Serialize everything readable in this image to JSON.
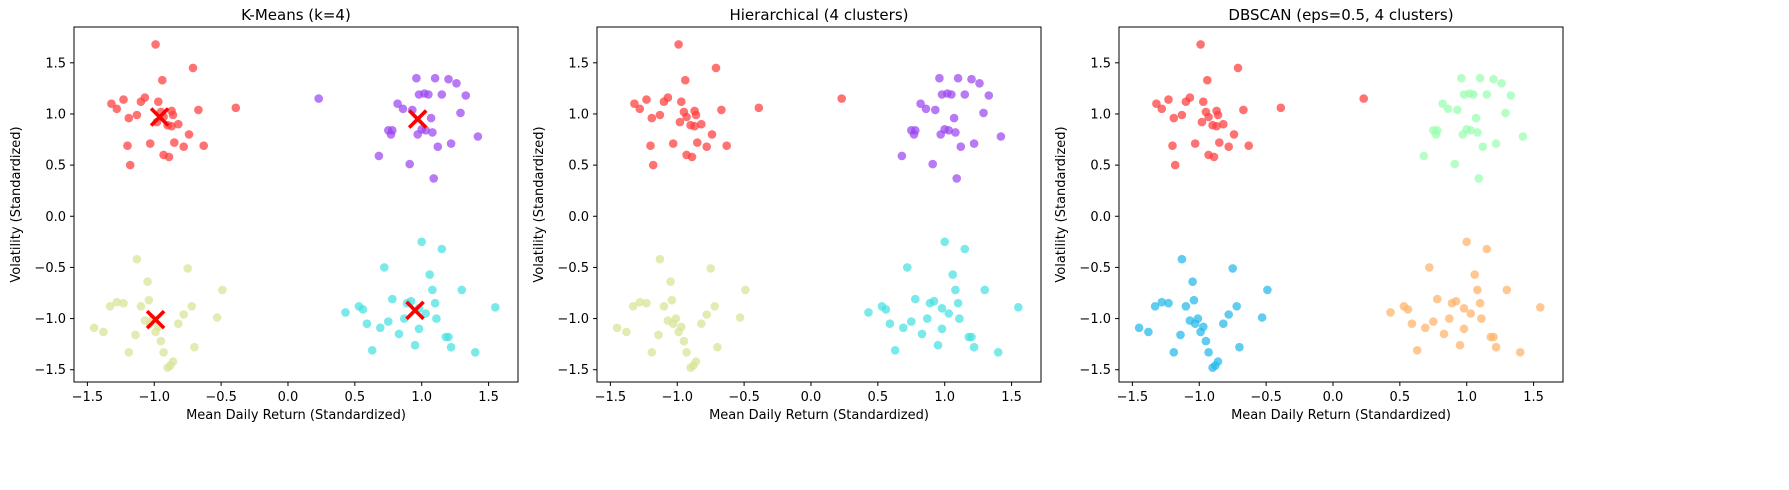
{
  "chart_data": [
    {
      "type": "scatter",
      "title": "K-Means (k=4)",
      "xlabel": "Mean Daily Return (Standardized)",
      "ylabel": "Volatility (Standardized)",
      "xlim": [
        -1.6,
        1.72
      ],
      "ylim": [
        -1.62,
        1.85
      ],
      "xticks": [
        -1.5,
        -1.0,
        -0.5,
        0.0,
        0.5,
        1.0,
        1.5
      ],
      "yticks": [
        -1.5,
        -1.0,
        -0.5,
        0.0,
        0.5,
        1.0,
        1.5
      ],
      "grid": false,
      "colors": [
        "#ff3b3b",
        "#9b45f0",
        "#d8e394",
        "#45e0e0"
      ],
      "centers": [
        [
          -0.96,
          0.97
        ],
        [
          0.97,
          0.95
        ],
        [
          -0.99,
          -1.01
        ],
        [
          0.95,
          -0.92
        ]
      ],
      "center_color": "#ff0000",
      "cluster_assignment": [
        0,
        1,
        2,
        3,
        1
      ]
    },
    {
      "type": "scatter",
      "title": "Hierarchical (4 clusters)",
      "xlabel": "Mean Daily Return (Standardized)",
      "ylabel": "Volatility (Standardized)",
      "xlim": [
        -1.6,
        1.72
      ],
      "ylim": [
        -1.62,
        1.85
      ],
      "xticks": [
        -1.5,
        -1.0,
        -0.5,
        0.0,
        0.5,
        1.0,
        1.5
      ],
      "yticks": [
        -1.5,
        -1.0,
        -0.5,
        0.0,
        0.5,
        1.0,
        1.5
      ],
      "grid": false,
      "colors": [
        "#ff3b3b",
        "#9b45f0",
        "#d8e394",
        "#45e0e0"
      ],
      "cluster_assignment": [
        0,
        1,
        2,
        3,
        0
      ]
    },
    {
      "type": "scatter",
      "title": "DBSCAN (eps=0.5, 4 clusters)",
      "xlabel": "Mean Daily Return (Standardized)",
      "ylabel": "Volatility (Standardized)",
      "xlim": [
        -1.6,
        1.72
      ],
      "ylim": [
        -1.62,
        1.85
      ],
      "xticks": [
        -1.5,
        -1.0,
        -0.5,
        0.0,
        0.5,
        1.0,
        1.5
      ],
      "yticks": [
        -1.5,
        -1.0,
        -0.5,
        0.0,
        0.5,
        1.0,
        1.5
      ],
      "grid": false,
      "colors": [
        "#ff3b3b",
        "#98ffb0",
        "#22b8ea",
        "#ffb36a"
      ],
      "cluster_assignment": [
        0,
        1,
        2,
        3,
        0
      ]
    }
  ],
  "points": {
    "group_top_left": [
      [
        -1.32,
        1.1
      ],
      [
        -1.28,
        1.05
      ],
      [
        -1.23,
        1.14
      ],
      [
        -1.19,
        0.96
      ],
      [
        -1.2,
        0.69
      ],
      [
        -1.18,
        0.5
      ],
      [
        -1.13,
        0.99
      ],
      [
        -1.07,
        1.16
      ],
      [
        -1.03,
        0.71
      ],
      [
        -0.99,
        1.68
      ],
      [
        -0.97,
        1.12
      ],
      [
        -0.95,
        1.02
      ],
      [
        -0.94,
        1.33
      ],
      [
        -0.93,
        0.97
      ],
      [
        -0.9,
        0.89
      ],
      [
        -0.87,
        0.88
      ],
      [
        -0.87,
        1.03
      ],
      [
        -0.93,
        0.6
      ],
      [
        -0.89,
        0.58
      ],
      [
        -0.86,
        0.99
      ],
      [
        -0.85,
        0.72
      ],
      [
        -0.82,
        0.9
      ],
      [
        -0.78,
        0.68
      ],
      [
        -0.74,
        0.8
      ],
      [
        -0.71,
        1.45
      ],
      [
        -0.67,
        1.04
      ],
      [
        -0.63,
        0.69
      ],
      [
        -0.39,
        1.06
      ],
      [
        -0.98,
        0.92
      ],
      [
        -1.1,
        1.12
      ]
    ],
    "group_top_right": [
      [
        0.68,
        0.59
      ],
      [
        0.75,
        0.84
      ],
      [
        0.77,
        0.8
      ],
      [
        0.78,
        0.84
      ],
      [
        0.82,
        1.1
      ],
      [
        0.86,
        1.05
      ],
      [
        0.91,
        0.51
      ],
      [
        0.93,
        1.04
      ],
      [
        0.96,
        1.35
      ],
      [
        0.98,
        1.19
      ],
      [
        1.0,
        0.85
      ],
      [
        1.02,
        1.2
      ],
      [
        1.03,
        0.84
      ],
      [
        1.07,
        0.96
      ],
      [
        1.08,
        0.82
      ],
      [
        1.09,
        0.37
      ],
      [
        1.1,
        1.35
      ],
      [
        1.15,
        1.19
      ],
      [
        1.2,
        1.34
      ],
      [
        1.22,
        0.71
      ],
      [
        1.26,
        1.3
      ],
      [
        1.29,
        1.01
      ],
      [
        1.33,
        1.18
      ],
      [
        1.42,
        0.78
      ],
      [
        1.05,
        1.19
      ],
      [
        0.97,
        0.8
      ],
      [
        1.12,
        0.68
      ]
    ],
    "group_bottom_left": [
      [
        -1.45,
        -1.09
      ],
      [
        -1.38,
        -1.13
      ],
      [
        -1.33,
        -0.88
      ],
      [
        -1.28,
        -0.84
      ],
      [
        -1.23,
        -0.85
      ],
      [
        -1.19,
        -1.33
      ],
      [
        -1.13,
        -0.42
      ],
      [
        -1.1,
        -0.88
      ],
      [
        -1.07,
        -1.02
      ],
      [
        -1.05,
        -0.64
      ],
      [
        -1.04,
        -0.82
      ],
      [
        -1.03,
        -1.05
      ],
      [
        -1.01,
        -1.0
      ],
      [
        -0.97,
        -1.08
      ],
      [
        -0.95,
        -1.22
      ],
      [
        -0.93,
        -1.33
      ],
      [
        -0.9,
        -1.48
      ],
      [
        -0.88,
        -1.46
      ],
      [
        -0.86,
        -1.42
      ],
      [
        -0.82,
        -1.05
      ],
      [
        -0.78,
        -0.96
      ],
      [
        -0.75,
        -0.51
      ],
      [
        -0.72,
        -0.88
      ],
      [
        -0.7,
        -1.28
      ],
      [
        -0.53,
        -0.99
      ],
      [
        -0.49,
        -0.72
      ],
      [
        -1.14,
        -1.16
      ],
      [
        -0.99,
        -1.13
      ]
    ],
    "group_bottom_right": [
      [
        0.43,
        -0.94
      ],
      [
        0.53,
        -0.88
      ],
      [
        0.56,
        -0.91
      ],
      [
        0.59,
        -1.05
      ],
      [
        0.63,
        -1.31
      ],
      [
        0.69,
        -1.09
      ],
      [
        0.72,
        -0.5
      ],
      [
        0.75,
        -1.03
      ],
      [
        0.78,
        -0.81
      ],
      [
        0.83,
        -1.15
      ],
      [
        0.87,
        -1.0
      ],
      [
        0.89,
        -0.85
      ],
      [
        0.92,
        -0.83
      ],
      [
        0.95,
        -1.26
      ],
      [
        0.98,
        -1.1
      ],
      [
        1.0,
        -0.25
      ],
      [
        1.03,
        -0.95
      ],
      [
        1.06,
        -0.57
      ],
      [
        1.08,
        -0.72
      ],
      [
        1.1,
        -0.85
      ],
      [
        1.11,
        -1.0
      ],
      [
        1.15,
        -0.32
      ],
      [
        1.2,
        -1.18
      ],
      [
        1.22,
        -1.28
      ],
      [
        1.3,
        -0.72
      ],
      [
        1.4,
        -1.33
      ],
      [
        1.55,
        -0.89
      ],
      [
        0.98,
        -0.9
      ],
      [
        1.18,
        -1.18
      ]
    ],
    "group_outlier": [
      [
        0.23,
        1.15
      ]
    ]
  }
}
